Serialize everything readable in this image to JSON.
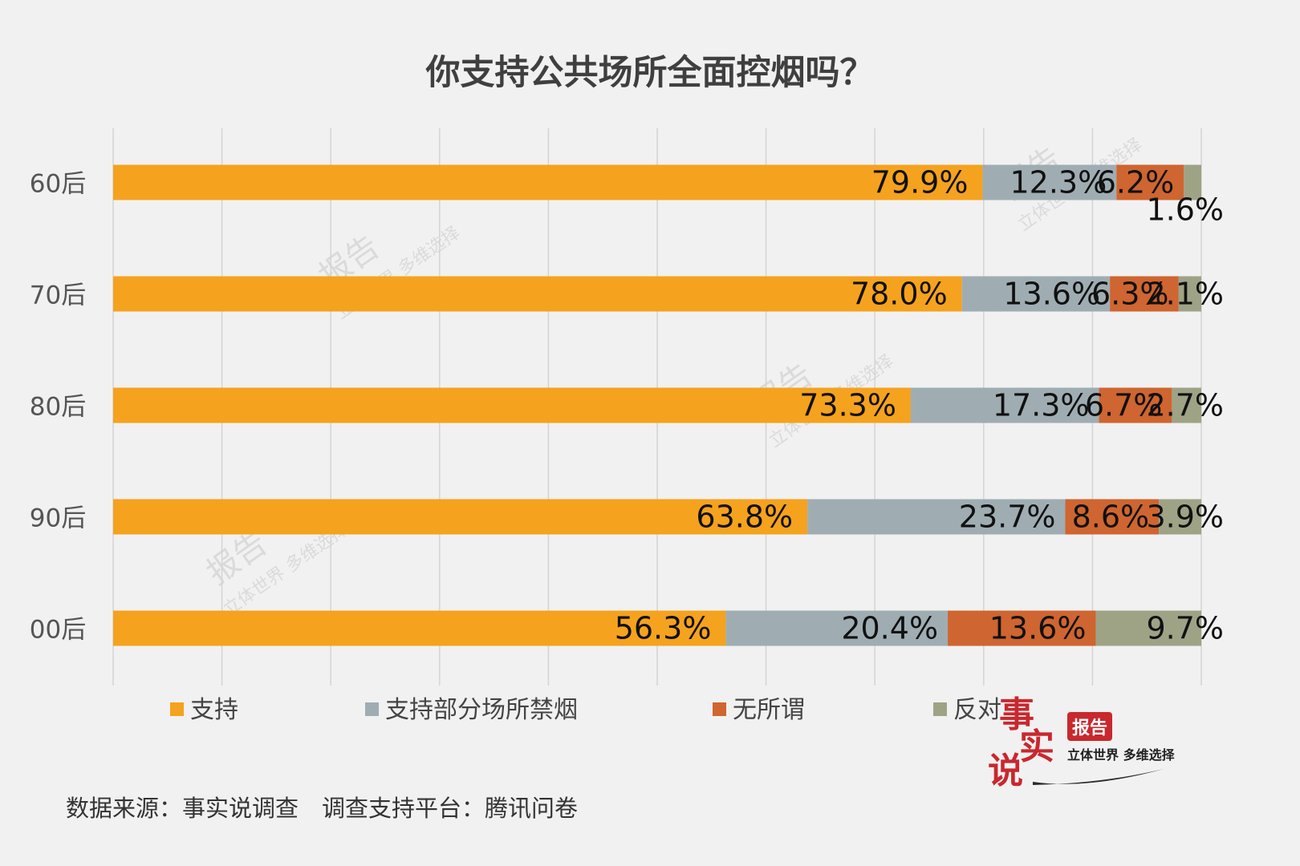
{
  "chart_data": {
    "type": "bar",
    "orientation": "horizontal",
    "stacked": true,
    "percent": true,
    "title": "你支持公共场所全面控烟吗？",
    "categories": [
      "60后",
      "70后",
      "80后",
      "90后",
      "00后"
    ],
    "series": [
      {
        "name": "支持",
        "color": "#f5a21e",
        "values": [
          79.9,
          78.0,
          73.3,
          63.8,
          56.3
        ],
        "labels": [
          "79.9%",
          "78.0%",
          "73.3%",
          "63.8%",
          "56.3%"
        ]
      },
      {
        "name": "支持部分场所禁烟",
        "color": "#9fadb3",
        "values": [
          12.3,
          13.6,
          17.3,
          23.7,
          20.4
        ],
        "labels": [
          "12.3%",
          "13.6%",
          "17.3%",
          "23.7%",
          "20.4%"
        ]
      },
      {
        "name": "无所谓",
        "color": "#cf6530",
        "values": [
          6.2,
          6.3,
          6.7,
          8.6,
          13.6
        ],
        "labels": [
          "6.2%",
          "6.3%",
          "6.7%",
          "8.6%",
          "13.6%"
        ]
      },
      {
        "name": "反对",
        "color": "#9ea386",
        "values": [
          1.6,
          2.1,
          2.7,
          3.9,
          9.7
        ],
        "labels": [
          "1.6%",
          "2.1%",
          "2.7%",
          "3.9%",
          "9.7%"
        ]
      }
    ],
    "xlim": [
      0,
      100
    ],
    "grid": true,
    "legend_position": "bottom"
  },
  "footer": {
    "source": "数据来源：事实说调查　调查支持平台：腾讯问卷"
  },
  "logo": {
    "chars": [
      "事",
      "实",
      "说"
    ],
    "badge": "报告",
    "tagline": "立体世界 多维选择"
  },
  "watermark": {
    "text": "报告",
    "tagline": "立体世界 多维选择"
  }
}
